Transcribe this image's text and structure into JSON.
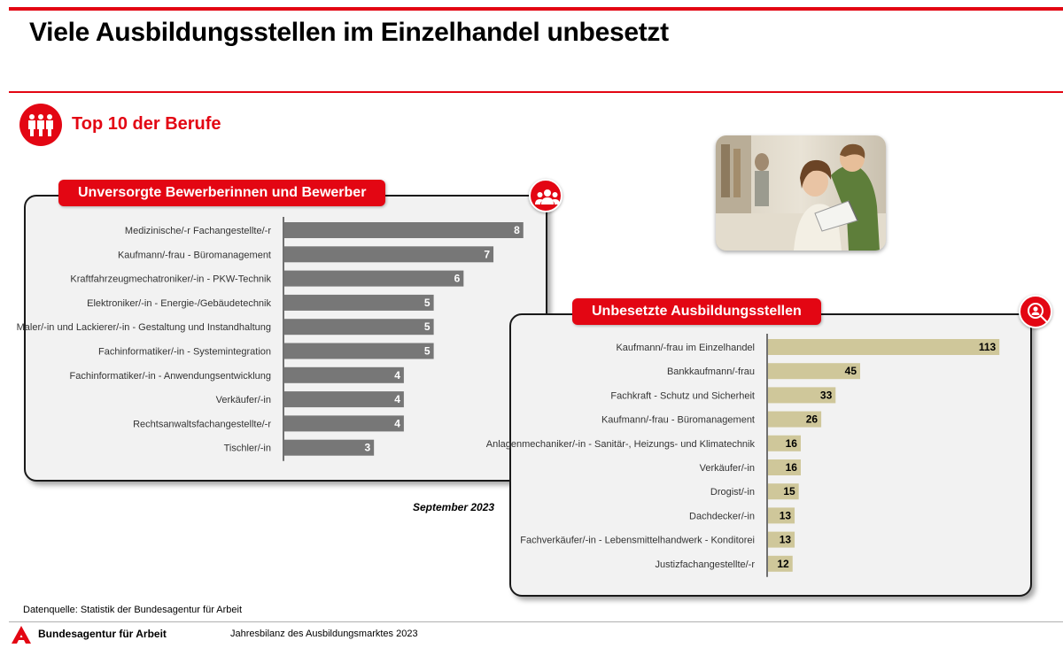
{
  "page": {
    "title": "Viele Ausbildungsstellen im Einzelhandel unbesetzt",
    "section_title": "Top 10 der Berufe",
    "date_label": "September 2023",
    "source": "Datenquelle: Statistik der Bundesagentur für Arbeit",
    "org_name": "Bundesagentur für Arbeit",
    "footer_text": "Jahresbilanz des Ausbildungsmarktes 2023"
  },
  "colors": {
    "accent_red": "#e30613",
    "bar_gray": "#777777",
    "bar_khaki": "#cfc79a",
    "panel_bg": "#f2f2f2"
  },
  "icons": {
    "section": "people-group-icon",
    "left_badge": "users-icon",
    "right_badge": "search-person-icon",
    "logo": "ba-logo-icon",
    "photo": "students-photo"
  },
  "chart_data": [
    {
      "type": "bar",
      "orientation": "horizontal",
      "title": "Unversorgte Bewerberinnen und Bewerber",
      "categories": [
        "Medizinische/-r Fachangestellte/-r",
        "Kaufmann/-frau - Büromanagement",
        "Kraftfahrzeugmechatroniker/-in - PKW-Technik",
        "Elektroniker/-in - Energie-/Gebäudetechnik",
        "Maler/-in und Lackierer/-in - Gestaltung und Instandhaltung",
        "Fachinformatiker/-in - Systemintegration",
        "Fachinformatiker/-in - Anwendungsentwicklung",
        "Verkäufer/-in",
        "Rechtsanwaltsfachangestellte/-r",
        "Tischler/-in"
      ],
      "values": [
        8,
        7,
        6,
        5,
        5,
        5,
        4,
        4,
        4,
        3
      ],
      "xlim": [
        0,
        8.6
      ],
      "bar_color": "#777777",
      "label_color": "#ffffff",
      "grid": false,
      "legend": "none"
    },
    {
      "type": "bar",
      "orientation": "horizontal",
      "title": "Unbesetzte Ausbildungsstellen",
      "categories": [
        "Kaufmann/-frau im Einzelhandel",
        "Bankkaufmann/-frau",
        "Fachkraft - Schutz und Sicherheit",
        "Kaufmann/-frau - Büromanagement",
        "Anlagenmechaniker/-in - Sanitär-, Heizungs- und Klimatechnik",
        "Verkäufer/-in",
        "Drogist/-in",
        "Dachdecker/-in",
        "Fachverkäufer/-in - Lebensmittelhandwerk - Konditorei",
        "Justizfachangestellte/-r"
      ],
      "values": [
        113,
        45,
        33,
        26,
        16,
        16,
        15,
        13,
        13,
        12
      ],
      "xlim": [
        0,
        122
      ],
      "bar_color": "#cfc79a",
      "label_color": "#000000",
      "grid": false,
      "legend": "none"
    }
  ]
}
